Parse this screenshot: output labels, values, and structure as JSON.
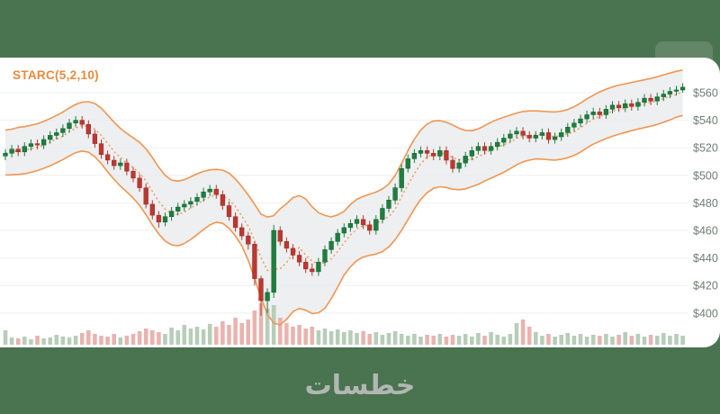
{
  "page": {
    "background_color": "#4a7350",
    "watermark": "خطسات"
  },
  "chart": {
    "indicator_label": "STARC(5,2,10)",
    "colors": {
      "up_candle": "#1e7e3e",
      "down_candle": "#bb3831",
      "band_line": "#f0964f",
      "band_fill": "#e9ebee",
      "mid_line": "#f0964f",
      "volume_up": "#b7cdb9",
      "volume_down": "#e9b3af",
      "grid_line": "#edeff1",
      "axis_text": "#6e7d71",
      "indicator_text": "#e98a3d",
      "panel_bg": "#ffffff"
    }
  },
  "chart_data": {
    "type": "candlestick",
    "title": "",
    "indicator": {
      "name": "STARC",
      "parameters": [
        5,
        2,
        10
      ]
    },
    "legend_position": "top-left",
    "grid": "horizontal-only",
    "price_axis": {
      "side": "right",
      "min": 400,
      "max": 560,
      "step": 20,
      "currency": "$"
    },
    "y_ticks": [
      560,
      540,
      520,
      500,
      480,
      460,
      440,
      420,
      400
    ],
    "y_tick_labels": [
      "$560",
      "$540",
      "$520",
      "$500",
      "$480",
      "$460",
      "$440",
      "$420",
      "$400"
    ],
    "candles": [
      [
        514,
        519,
        511,
        516
      ],
      [
        516,
        522,
        513,
        519
      ],
      [
        519,
        522,
        514,
        517
      ],
      [
        517,
        524,
        514,
        521
      ],
      [
        521,
        526,
        518,
        523
      ],
      [
        523,
        526,
        519,
        522
      ],
      [
        522,
        529,
        519,
        526
      ],
      [
        526,
        532,
        523,
        529
      ],
      [
        529,
        534,
        526,
        531
      ],
      [
        531,
        537,
        528,
        534
      ],
      [
        534,
        541,
        531,
        538
      ],
      [
        538,
        543,
        535,
        540
      ],
      [
        540,
        543,
        534,
        537
      ],
      [
        537,
        540,
        527,
        530
      ],
      [
        530,
        533,
        520,
        523
      ],
      [
        523,
        526,
        512,
        515
      ],
      [
        515,
        518,
        508,
        511
      ],
      [
        511,
        514,
        504,
        507
      ],
      [
        507,
        512,
        504,
        509
      ],
      [
        509,
        512,
        500,
        503
      ],
      [
        503,
        506,
        495,
        498
      ],
      [
        498,
        501,
        488,
        491
      ],
      [
        491,
        494,
        476,
        479
      ],
      [
        479,
        482,
        468,
        471
      ],
      [
        471,
        474,
        462,
        466
      ],
      [
        466,
        473,
        463,
        470
      ],
      [
        470,
        477,
        467,
        474
      ],
      [
        474,
        480,
        471,
        477
      ],
      [
        477,
        482,
        474,
        479
      ],
      [
        479,
        484,
        476,
        481
      ],
      [
        481,
        487,
        478,
        484
      ],
      [
        484,
        491,
        481,
        488
      ],
      [
        488,
        493,
        485,
        490
      ],
      [
        490,
        493,
        483,
        486
      ],
      [
        486,
        489,
        475,
        478
      ],
      [
        478,
        481,
        467,
        470
      ],
      [
        470,
        473,
        459,
        462
      ],
      [
        462,
        465,
        453,
        456
      ],
      [
        456,
        459,
        446,
        450
      ],
      [
        450,
        452,
        420,
        425
      ],
      [
        425,
        427,
        398,
        409
      ],
      [
        409,
        418,
        400,
        415
      ],
      [
        415,
        464,
        411,
        460
      ],
      [
        460,
        463,
        449,
        452
      ],
      [
        452,
        455,
        444,
        447
      ],
      [
        447,
        450,
        439,
        442
      ],
      [
        442,
        445,
        434,
        437
      ],
      [
        437,
        440,
        429,
        432
      ],
      [
        432,
        436,
        427,
        430
      ],
      [
        430,
        440,
        427,
        437
      ],
      [
        437,
        449,
        434,
        446
      ],
      [
        446,
        455,
        443,
        452
      ],
      [
        452,
        461,
        449,
        458
      ],
      [
        458,
        465,
        455,
        462
      ],
      [
        462,
        468,
        459,
        465
      ],
      [
        465,
        471,
        462,
        468
      ],
      [
        468,
        471,
        461,
        464
      ],
      [
        464,
        467,
        457,
        460
      ],
      [
        460,
        471,
        457,
        468
      ],
      [
        468,
        479,
        465,
        476
      ],
      [
        476,
        485,
        473,
        482
      ],
      [
        482,
        494,
        479,
        491
      ],
      [
        491,
        508,
        488,
        505
      ],
      [
        505,
        515,
        502,
        512
      ],
      [
        512,
        519,
        509,
        516
      ],
      [
        516,
        521,
        513,
        518
      ],
      [
        518,
        521,
        512,
        516
      ],
      [
        516,
        519,
        511,
        514
      ],
      [
        514,
        521,
        511,
        518
      ],
      [
        518,
        521,
        508,
        511
      ],
      [
        511,
        514,
        502,
        505
      ],
      [
        505,
        512,
        502,
        509
      ],
      [
        509,
        517,
        506,
        514
      ],
      [
        514,
        521,
        511,
        518
      ],
      [
        518,
        524,
        515,
        521
      ],
      [
        521,
        524,
        515,
        518
      ],
      [
        518,
        524,
        515,
        521
      ],
      [
        521,
        527,
        518,
        524
      ],
      [
        524,
        530,
        521,
        527
      ],
      [
        527,
        533,
        524,
        530
      ],
      [
        530,
        535,
        527,
        532
      ],
      [
        532,
        535,
        526,
        529
      ],
      [
        529,
        532,
        524,
        527
      ],
      [
        527,
        532,
        524,
        529
      ],
      [
        529,
        534,
        526,
        531
      ],
      [
        531,
        534,
        523,
        526
      ],
      [
        526,
        531,
        523,
        528
      ],
      [
        528,
        534,
        525,
        531
      ],
      [
        531,
        538,
        528,
        535
      ],
      [
        535,
        541,
        532,
        538
      ],
      [
        538,
        544,
        535,
        541
      ],
      [
        541,
        547,
        538,
        544
      ],
      [
        544,
        549,
        541,
        546
      ],
      [
        546,
        549,
        541,
        544
      ],
      [
        544,
        551,
        541,
        548
      ],
      [
        548,
        554,
        545,
        551
      ],
      [
        551,
        554,
        546,
        549
      ],
      [
        549,
        555,
        546,
        552
      ],
      [
        552,
        555,
        547,
        550
      ],
      [
        550,
        556,
        547,
        553
      ],
      [
        553,
        559,
        550,
        556
      ],
      [
        556,
        559,
        551,
        554
      ],
      [
        554,
        560,
        551,
        557
      ],
      [
        557,
        562,
        554,
        559
      ],
      [
        559,
        564,
        556,
        561
      ],
      [
        561,
        565,
        558,
        562
      ],
      [
        562,
        567,
        560,
        564
      ]
    ],
    "volumes": [
      16,
      8,
      7,
      9,
      6,
      10,
      7,
      8,
      11,
      9,
      8,
      10,
      13,
      16,
      12,
      10,
      9,
      12,
      8,
      10,
      12,
      15,
      18,
      16,
      14,
      12,
      19,
      16,
      22,
      18,
      20,
      17,
      23,
      20,
      26,
      22,
      30,
      24,
      28,
      38,
      46,
      40,
      44,
      30,
      24,
      20,
      22,
      18,
      20,
      16,
      18,
      15,
      17,
      14,
      16,
      13,
      15,
      12,
      14,
      11,
      13,
      15,
      12,
      10,
      12,
      9,
      11,
      10,
      12,
      9,
      11,
      10,
      12,
      9,
      13,
      10,
      14,
      11,
      9,
      12,
      24,
      28,
      20,
      14,
      10,
      12,
      9,
      11,
      13,
      10,
      12,
      9,
      11,
      10,
      12,
      9,
      11,
      14,
      10,
      12,
      9,
      11,
      10,
      13,
      10,
      12,
      10
    ]
  }
}
